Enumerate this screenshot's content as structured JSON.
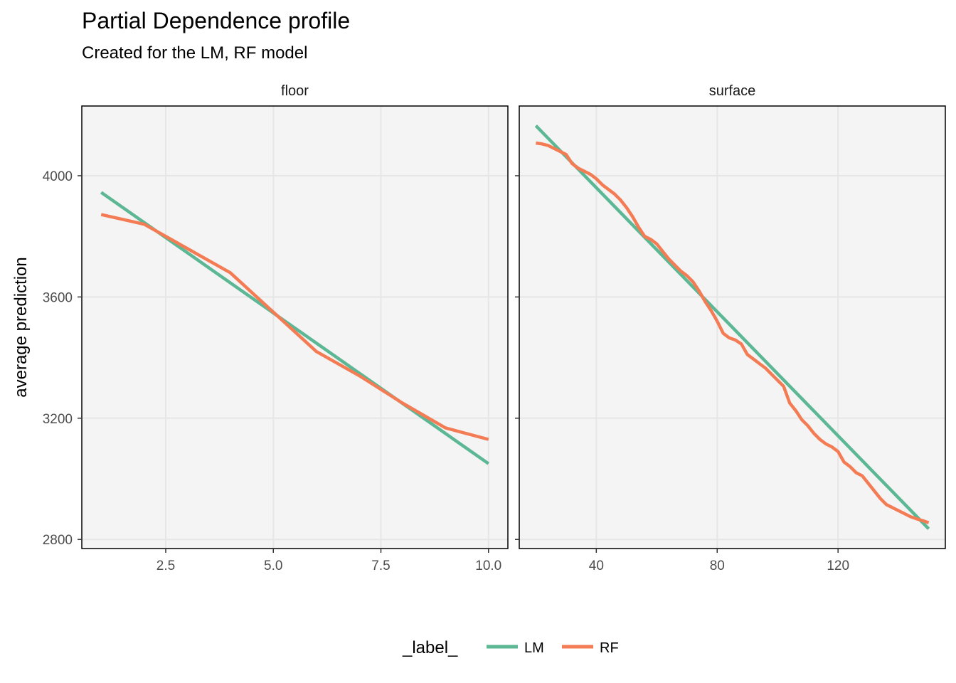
{
  "chart_data": {
    "type": "line",
    "title": "Partial Dependence profile",
    "subtitle": "Created for the LM, RF model",
    "ylabel": "average prediction",
    "ylim": [
      2770,
      4230
    ],
    "yticks": [
      2800,
      3200,
      3600,
      4000
    ],
    "legend": {
      "title": "_label_",
      "position": "bottom",
      "entries": [
        {
          "name": "LM",
          "color": "#5bb794"
        },
        {
          "name": "RF",
          "color": "#f47c55"
        }
      ]
    },
    "panels": [
      {
        "strip": "floor",
        "xlim": [
          0.55,
          10.45
        ],
        "xticks": [
          2.5,
          5.0,
          7.5,
          10.0
        ],
        "xtick_labels": [
          "2.5",
          "5.0",
          "7.5",
          "10.0"
        ],
        "series": [
          {
            "name": "LM",
            "x": [
              1,
              10
            ],
            "y": [
              3945,
              3050
            ]
          },
          {
            "name": "RF",
            "x": [
              1,
              2,
              3,
              4,
              5,
              6,
              7,
              8,
              9,
              10
            ],
            "y": [
              3872,
              3840,
              3760,
              3680,
              3550,
              3420,
              3340,
              3250,
              3168,
              3130
            ]
          }
        ]
      },
      {
        "strip": "surface",
        "xlim": [
          14.5,
          155.5
        ],
        "xticks": [
          40,
          80,
          120
        ],
        "xtick_labels": [
          "40",
          "80",
          "120"
        ],
        "series": [
          {
            "name": "LM",
            "x": [
              20,
              150
            ],
            "y": [
              4165,
              2835
            ]
          },
          {
            "name": "RF",
            "x": [
              20,
              22,
              24,
              26,
              28,
              30,
              32,
              34,
              36,
              38,
              40,
              42,
              44,
              46,
              48,
              50,
              52,
              54,
              56,
              58,
              60,
              62,
              64,
              66,
              68,
              70,
              72,
              74,
              76,
              78,
              80,
              82,
              84,
              86,
              88,
              90,
              92,
              94,
              96,
              98,
              100,
              102,
              104,
              106,
              108,
              110,
              112,
              114,
              116,
              118,
              120,
              122,
              124,
              126,
              128,
              130,
              132,
              134,
              136,
              138,
              140,
              142,
              144,
              146,
              148,
              150
            ],
            "y": [
              4108,
              4105,
              4100,
              4090,
              4080,
              4070,
              4040,
              4025,
              4015,
              4005,
              3990,
              3970,
              3955,
              3940,
              3920,
              3895,
              3865,
              3830,
              3800,
              3790,
              3775,
              3750,
              3725,
              3705,
              3685,
              3670,
              3650,
              3620,
              3585,
              3555,
              3520,
              3480,
              3465,
              3458,
              3445,
              3410,
              3395,
              3380,
              3365,
              3345,
              3325,
              3305,
              3250,
              3225,
              3195,
              3175,
              3150,
              3130,
              3115,
              3105,
              3090,
              3055,
              3040,
              3020,
              3010,
              2985,
              2960,
              2935,
              2915,
              2905,
              2895,
              2885,
              2875,
              2868,
              2862,
              2855
            ]
          }
        ]
      }
    ]
  }
}
